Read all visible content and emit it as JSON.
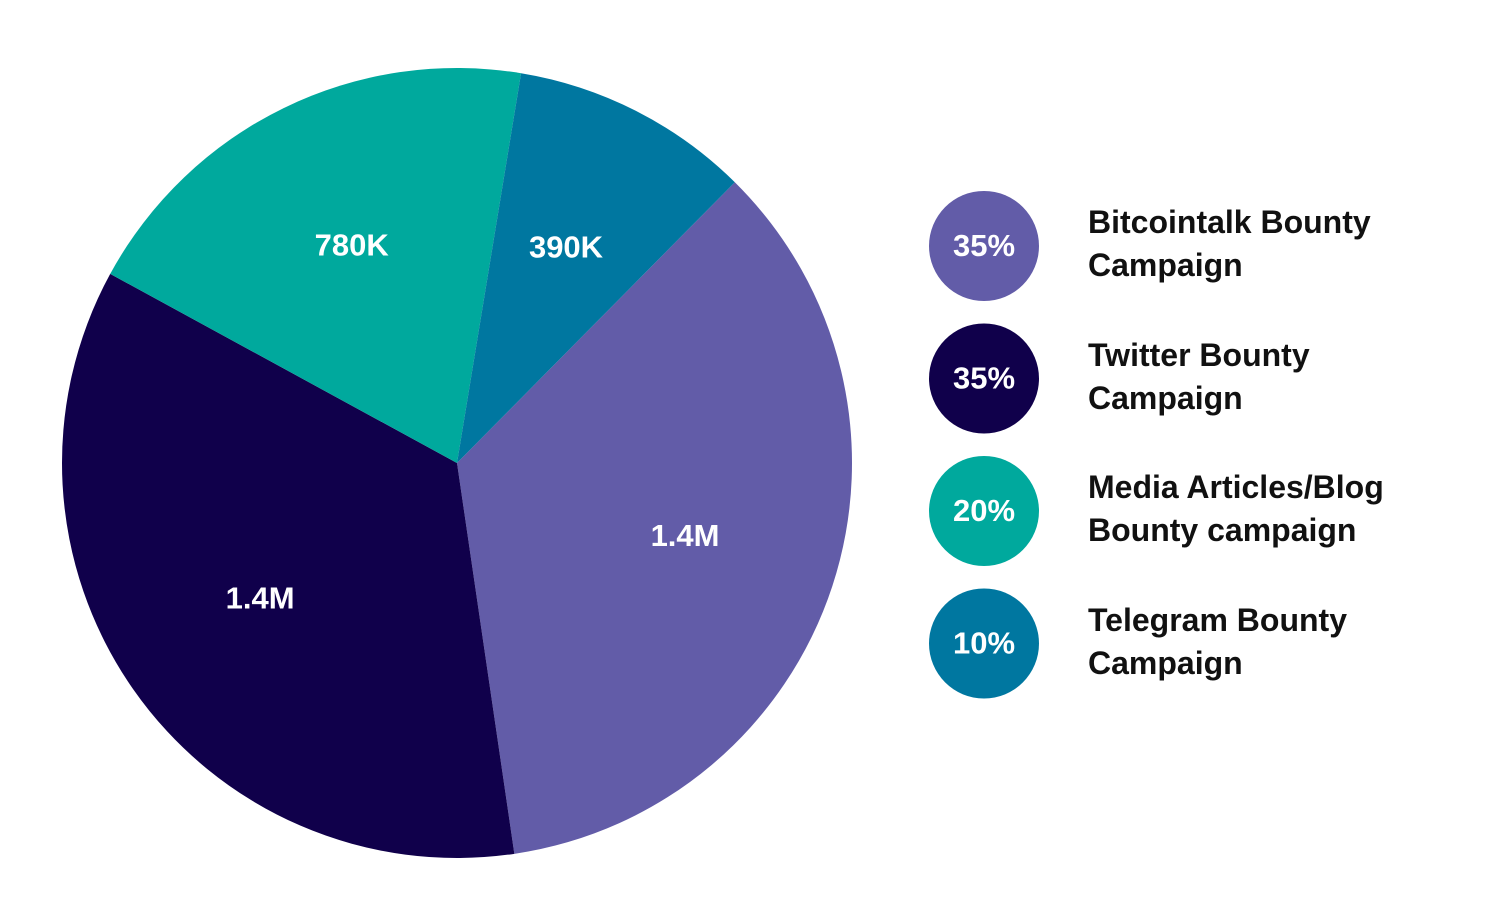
{
  "chart_data": {
    "type": "pie",
    "categories": [
      "Bitcointalk Bounty Campaign",
      "Twitter Bounty Campaign",
      "Media Articles/Blog Bounty campaign",
      "Telegram Bounty Campaign"
    ],
    "values": [
      1400000,
      1400000,
      780000,
      390000
    ],
    "value_labels": [
      "1.4M",
      "1.4M",
      "780K",
      "390K"
    ],
    "shares": [
      35,
      35,
      20,
      10
    ],
    "share_labels": [
      "35%",
      "35%",
      "20%",
      "10%"
    ],
    "colors": [
      "#625ca8",
      "#10004b",
      "#00a99d",
      "#0077a0"
    ]
  }
}
